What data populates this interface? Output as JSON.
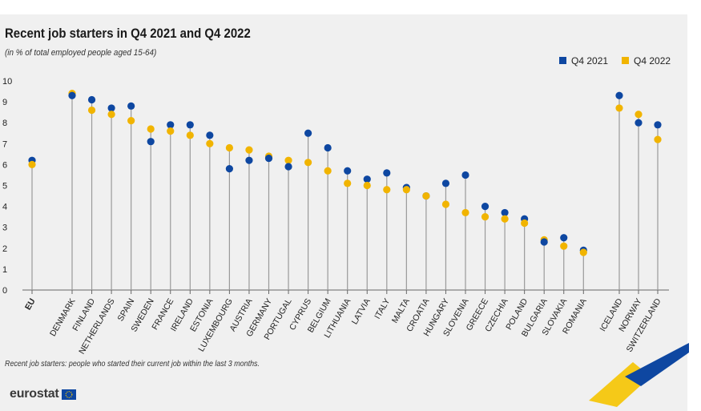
{
  "title": "Recent job starters in Q4 2021 and Q4 2022",
  "subtitle": "(in % of total employed people aged 15-64)",
  "footnote": "Recent job starters: people who started their current job within the last 3 months.",
  "logo_text": "eurostat",
  "colors": {
    "q2021": "#0e47a1",
    "q2022": "#f1b400",
    "stem": "#9a9a9a",
    "axis": "#666666",
    "background": "#f0f0f0"
  },
  "chart_data": {
    "type": "scatter",
    "title": "Recent job starters in Q4 2021 and Q4 2022",
    "ylabel": "",
    "xlabel": "",
    "ylim": [
      0,
      10
    ],
    "yticks": [
      0,
      1,
      2,
      3,
      4,
      5,
      6,
      7,
      8,
      9,
      10
    ],
    "legend_position": "top-right",
    "categories": [
      "EU",
      "DENMARK",
      "FINLAND",
      "NETHERLANDS",
      "SPAIN",
      "SWEDEN",
      "FRANCE",
      "IRELAND",
      "ESTONIA",
      "LUXEMBOURG",
      "AUSTRIA",
      "GERMANY",
      "PORTUGAL",
      "CYPRUS",
      "BELGIUM",
      "LITHUANIA",
      "LATVIA",
      "ITALY",
      "MALTA",
      "CROATIA",
      "HUNGARY",
      "SLOVENIA",
      "GREECE",
      "CZECHIA",
      "POLAND",
      "BULGARIA",
      "SLOVAKIA",
      "ROMANIA",
      "ICELAND",
      "NORWAY",
      "SWITZERLAND"
    ],
    "series": [
      {
        "name": "Q4 2021",
        "values": [
          6.2,
          9.3,
          9.1,
          8.7,
          8.8,
          7.1,
          7.9,
          7.9,
          7.4,
          5.8,
          6.2,
          6.3,
          5.9,
          7.5,
          6.8,
          5.7,
          5.3,
          5.6,
          4.9,
          4.5,
          5.1,
          5.5,
          4.0,
          3.7,
          3.4,
          2.3,
          2.5,
          1.9,
          9.3,
          8.0,
          7.9
        ]
      },
      {
        "name": "Q4 2022",
        "values": [
          6.0,
          9.4,
          8.6,
          8.4,
          8.1,
          7.7,
          7.6,
          7.4,
          7.0,
          6.8,
          6.7,
          6.4,
          6.2,
          6.1,
          5.7,
          5.1,
          5.0,
          4.8,
          4.8,
          4.5,
          4.1,
          3.7,
          3.5,
          3.4,
          3.2,
          2.4,
          2.1,
          1.8,
          8.7,
          8.4,
          7.2
        ]
      }
    ]
  }
}
